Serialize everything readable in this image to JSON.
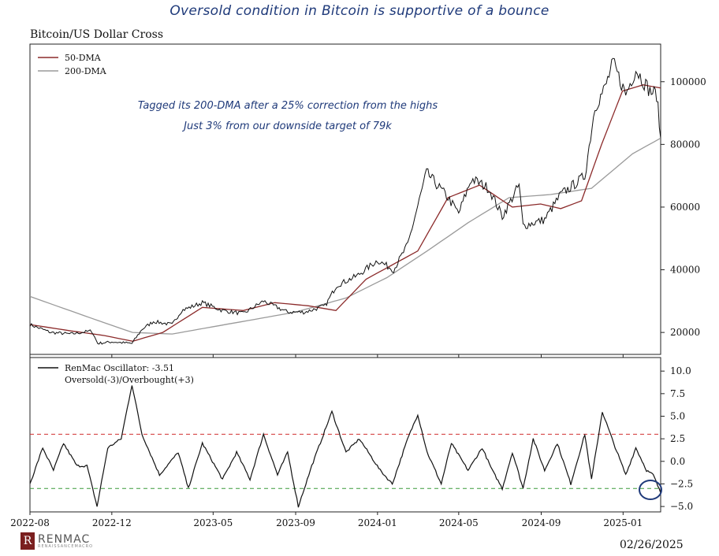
{
  "headline": "Oversold condition in Bitcoin is supportive of a bounce",
  "chart_title": "Bitcoin/US Dollar Cross",
  "date_stamp": "02/26/2025",
  "brand": {
    "name": "RENMAC",
    "tagline": "RENAISSANCEMACRO",
    "logo_color": "#7a1f1f"
  },
  "annotations": [
    "Tagged its 200-DMA after a 25% correction from the highs",
    "Just 3% from our downside target of 79k"
  ],
  "colors": {
    "price": "#111111",
    "dma50": "#8b2a2a",
    "dma200": "#9a9a9a",
    "oscillator": "#111111",
    "overbought": "#d03030",
    "oversold": "#3a9a3a",
    "annotation": "#1f3a7a"
  },
  "chart_data": [
    {
      "type": "line",
      "title": "Bitcoin/US Dollar Cross",
      "x_ticks": [
        "2022-08",
        "2022-12",
        "2023-05",
        "2023-09",
        "2024-01",
        "2024-05",
        "2024-09",
        "2025-01"
      ],
      "xlim": [
        "2022-08-01",
        "2025-02-26"
      ],
      "ylim": [
        13000,
        112000
      ],
      "y_ticks": [
        20000,
        40000,
        60000,
        80000,
        100000
      ],
      "y_tick_labels": [
        "20000",
        "40000",
        "60000",
        "80000",
        "100000"
      ],
      "legend": {
        "position": "top-left",
        "entries": [
          "50-DMA",
          "200-DMA"
        ]
      },
      "series": [
        {
          "name": "Price",
          "x": [
            "2022-08-01",
            "2022-09-01",
            "2022-10-01",
            "2022-11-01",
            "2022-11-10",
            "2022-12-01",
            "2022-12-31",
            "2023-01-15",
            "2023-02-01",
            "2023-03-01",
            "2023-03-15",
            "2023-04-15",
            "2023-05-15",
            "2023-06-15",
            "2023-07-15",
            "2023-08-20",
            "2023-09-15",
            "2023-10-15",
            "2023-11-01",
            "2023-12-01",
            "2024-01-01",
            "2024-01-25",
            "2024-02-15",
            "2024-03-14",
            "2024-04-15",
            "2024-05-01",
            "2024-05-20",
            "2024-06-15",
            "2024-07-05",
            "2024-07-30",
            "2024-08-05",
            "2024-09-06",
            "2024-09-30",
            "2024-10-25",
            "2024-11-05",
            "2024-11-20",
            "2024-12-05",
            "2024-12-17",
            "2025-01-05",
            "2025-01-20",
            "2025-02-10",
            "2025-02-20",
            "2025-02-26"
          ],
          "values": [
            22500,
            20000,
            19500,
            20500,
            16500,
            17000,
            16500,
            21000,
            23500,
            22500,
            27000,
            29500,
            27000,
            26000,
            30000,
            26500,
            26500,
            28500,
            35000,
            38000,
            43000,
            40000,
            48000,
            71000,
            63000,
            58000,
            69000,
            66000,
            57000,
            67000,
            54000,
            56000,
            64000,
            68000,
            70000,
            92000,
            98000,
            106000,
            96000,
            104000,
            97000,
            96000,
            82000
          ]
        },
        {
          "name": "50-DMA",
          "x": [
            "2022-08-01",
            "2022-10-01",
            "2022-11-20",
            "2023-01-01",
            "2023-02-15",
            "2023-04-15",
            "2023-06-15",
            "2023-08-01",
            "2023-09-20",
            "2023-10-31",
            "2023-12-15",
            "2024-01-31",
            "2024-03-01",
            "2024-04-15",
            "2024-06-01",
            "2024-07-20",
            "2024-08-31",
            "2024-09-30",
            "2024-10-31",
            "2024-11-30",
            "2024-12-31",
            "2025-01-31",
            "2025-02-26"
          ],
          "values": [
            22500,
            20500,
            19000,
            17200,
            20000,
            28000,
            27000,
            29500,
            28500,
            27000,
            37000,
            42500,
            46000,
            63000,
            67000,
            60000,
            61000,
            59500,
            62000,
            80000,
            97000,
            99000,
            98000
          ]
        },
        {
          "name": "200-DMA",
          "x": [
            "2022-08-01",
            "2022-11-01",
            "2023-01-01",
            "2023-03-01",
            "2023-06-01",
            "2023-09-01",
            "2023-11-15",
            "2024-01-15",
            "2024-03-15",
            "2024-05-15",
            "2024-07-15",
            "2024-09-15",
            "2024-11-15",
            "2025-01-15",
            "2025-02-26"
          ],
          "values": [
            31500,
            24500,
            20000,
            19500,
            23000,
            26500,
            31000,
            37500,
            46000,
            55000,
            63000,
            64000,
            66000,
            77000,
            82000
          ]
        }
      ]
    },
    {
      "type": "line",
      "title": "",
      "x_ticks": [
        "2022-08",
        "2022-12",
        "2023-05",
        "2023-09",
        "2024-01",
        "2024-05",
        "2024-09",
        "2025-01"
      ],
      "xlim": [
        "2022-08-01",
        "2025-02-26"
      ],
      "ylim": [
        -5.6,
        11.5
      ],
      "y_ticks": [
        10.0,
        7.5,
        5.0,
        2.5,
        0.0,
        -2.5,
        -5.0
      ],
      "y_tick_labels": [
        "10.0",
        "7.5",
        "5.0",
        "2.5",
        "0.0",
        "−2.5",
        "−5.0"
      ],
      "legend": {
        "position": "top-left",
        "entries": [
          "RenMac Oscillator: -3.51",
          "Oversold(-3)/Overbought(+3)"
        ]
      },
      "reference_lines": [
        3,
        -3
      ],
      "series": [
        {
          "name": "RenMac Oscillator",
          "x": [
            "2022-08-01",
            "2022-08-20",
            "2022-09-05",
            "2022-09-20",
            "2022-10-10",
            "2022-10-25",
            "2022-11-09",
            "2022-11-25",
            "2022-12-15",
            "2022-12-31",
            "2023-01-15",
            "2023-02-10",
            "2023-03-10",
            "2023-03-25",
            "2023-04-15",
            "2023-05-15",
            "2023-06-05",
            "2023-06-25",
            "2023-07-15",
            "2023-08-05",
            "2023-08-20",
            "2023-09-05",
            "2023-09-25",
            "2023-10-25",
            "2023-11-15",
            "2023-12-05",
            "2024-01-05",
            "2024-01-23",
            "2024-02-15",
            "2024-03-01",
            "2024-03-15",
            "2024-04-05",
            "2024-04-20",
            "2024-05-15",
            "2024-06-05",
            "2024-06-20",
            "2024-07-05",
            "2024-07-20",
            "2024-08-05",
            "2024-08-20",
            "2024-09-06",
            "2024-09-25",
            "2024-10-15",
            "2024-11-05",
            "2024-11-15",
            "2024-12-01",
            "2024-12-18",
            "2025-01-05",
            "2025-01-20",
            "2025-02-05",
            "2025-02-15",
            "2025-02-26"
          ],
          "values": [
            -2.5,
            1.5,
            -1.0,
            2.0,
            -0.5,
            -0.5,
            -5.0,
            1.5,
            2.5,
            8.5,
            3.0,
            -1.5,
            1.0,
            -3.0,
            2.0,
            -2.0,
            1.0,
            -2.0,
            3.0,
            -1.5,
            1.0,
            -5.0,
            -0.5,
            5.5,
            1.0,
            2.5,
            -1.0,
            -2.5,
            2.5,
            5.2,
            1.0,
            -2.5,
            2.0,
            -1.0,
            1.5,
            -1.0,
            -3.0,
            1.0,
            -3.0,
            2.5,
            -1.0,
            2.0,
            -2.5,
            3.0,
            -2.0,
            5.5,
            2.0,
            -1.5,
            1.5,
            -1.0,
            -1.5,
            -3.51
          ]
        }
      ]
    }
  ]
}
